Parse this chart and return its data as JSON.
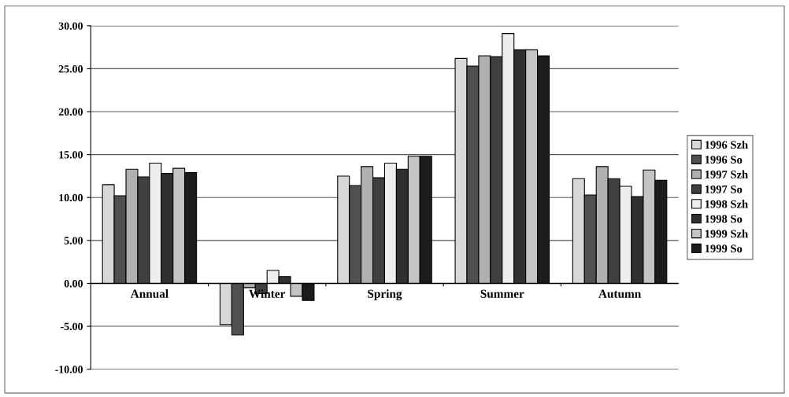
{
  "chart_data": {
    "type": "bar",
    "categories": [
      "Annual",
      "Winter",
      "Spring",
      "Summer",
      "Autumn"
    ],
    "series": [
      {
        "name": "1996 Szh",
        "color": "#d8d8d8",
        "values": [
          11.5,
          -4.8,
          12.5,
          26.2,
          12.2
        ]
      },
      {
        "name": "1996 So",
        "color": "#505050",
        "values": [
          10.2,
          -6.0,
          11.4,
          25.3,
          10.3
        ]
      },
      {
        "name": "1997 Szh",
        "color": "#b0b0b0",
        "values": [
          13.3,
          -0.5,
          13.6,
          26.5,
          13.6
        ]
      },
      {
        "name": "1997 So",
        "color": "#404040",
        "values": [
          12.4,
          -1.2,
          12.3,
          26.4,
          12.2
        ]
      },
      {
        "name": "1998 Szh",
        "color": "#eeeeee",
        "values": [
          14.0,
          1.5,
          14.0,
          29.1,
          11.3
        ]
      },
      {
        "name": "1998 So",
        "color": "#303030",
        "values": [
          12.8,
          0.8,
          13.3,
          27.2,
          10.1
        ]
      },
      {
        "name": "1999 Szh",
        "color": "#c4c4c4",
        "values": [
          13.4,
          -1.5,
          14.8,
          27.2,
          13.2
        ]
      },
      {
        "name": "1999 So",
        "color": "#1c1c1c",
        "values": [
          12.9,
          -2.0,
          14.8,
          26.5,
          12.0
        ]
      }
    ],
    "ylim": [
      -10,
      30
    ],
    "yticks": [
      {
        "value": -10,
        "label": "-10.00"
      },
      {
        "value": -5,
        "label": "-5.00"
      },
      {
        "value": 0,
        "label": "0.00"
      },
      {
        "value": 5,
        "label": "5.00"
      },
      {
        "value": 10,
        "label": "10.00"
      },
      {
        "value": 15,
        "label": "15.00"
      },
      {
        "value": 20,
        "label": "20.00"
      },
      {
        "value": 25,
        "label": "25.00"
      },
      {
        "value": 30,
        "label": "30.00"
      }
    ],
    "grid": "y",
    "legend": "right"
  }
}
